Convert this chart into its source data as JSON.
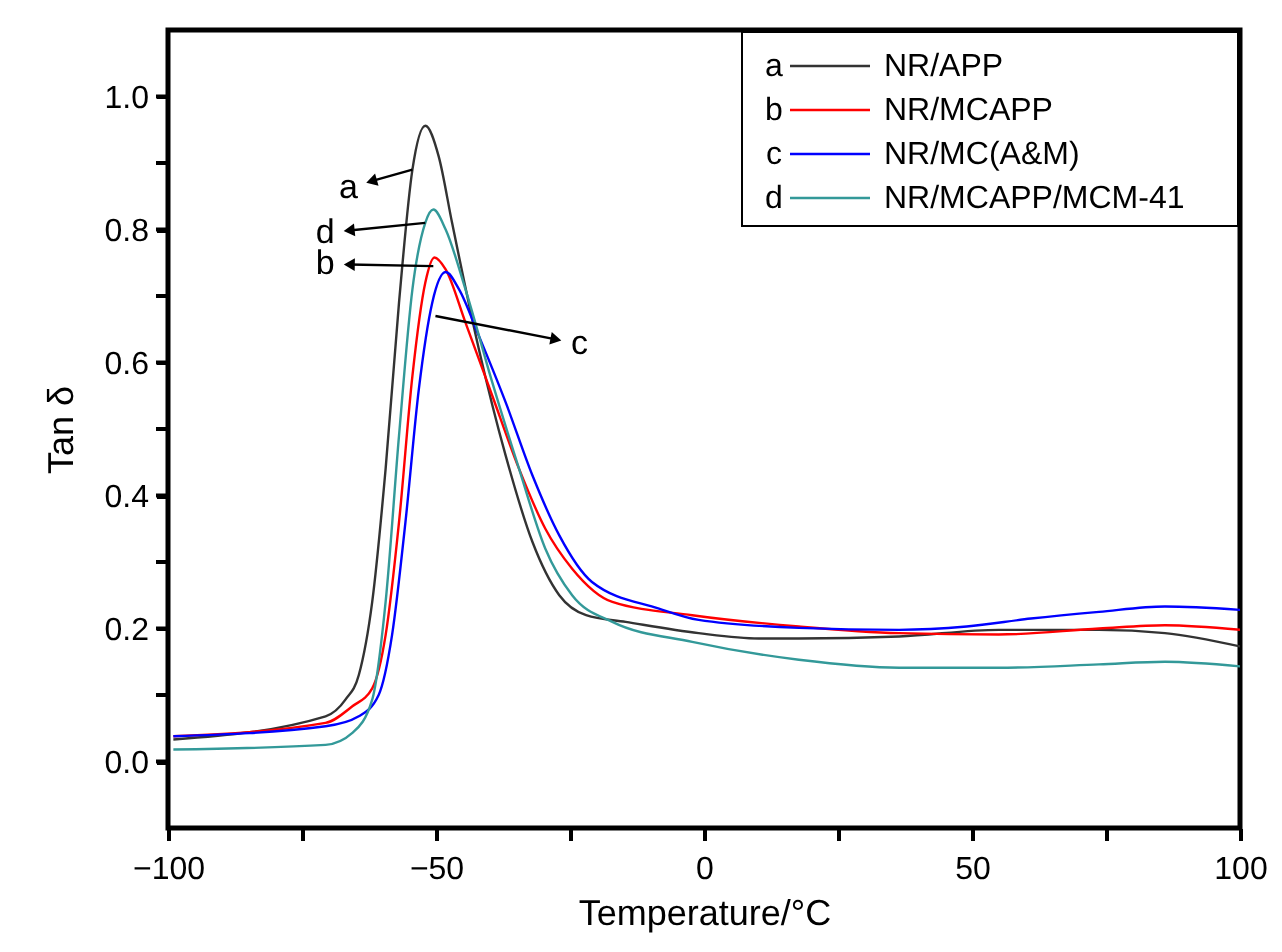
{
  "chart_data": {
    "type": "line",
    "xlabel": "Temperature/°C",
    "ylabel": "Tan δ",
    "xlim": [
      -100,
      100
    ],
    "ylim": [
      -0.1,
      1.1
    ],
    "xticks": [
      {
        "value": -100,
        "label": "−100"
      },
      {
        "value": -75,
        "label": null
      },
      {
        "value": -50,
        "label": "−50"
      },
      {
        "value": -25,
        "label": null
      },
      0,
      {
        "value": 25,
        "label": null
      },
      50,
      {
        "value": 75,
        "label": null
      },
      100
    ],
    "yticks": [
      {
        "value": 0,
        "label": "0.0"
      },
      {
        "value": 0.1,
        "label": null
      },
      0.2,
      {
        "value": 0.3,
        "label": null
      },
      0.4,
      {
        "value": 0.5,
        "label": null
      },
      0.6,
      {
        "value": 0.7,
        "label": null
      },
      0.8,
      {
        "value": 0.9,
        "label": null
      },
      {
        "value": 1.0,
        "label": "1.0"
      }
    ],
    "grid": false,
    "legend": "top right",
    "line_style": "solid",
    "marker": "none",
    "annotations": [
      {
        "text": "a",
        "x": -54.4,
        "y": 0.89
      },
      {
        "text": "b",
        "x": -50.5,
        "y": 0.745
      },
      {
        "text": "c",
        "x": -50.1,
        "y": 0.67
      },
      {
        "text": "d",
        "x": -52,
        "y": 0.81
      }
    ],
    "series": [
      {
        "name": "NR/APP",
        "color": "#333333",
        "x": [
          -99,
          -70.6,
          -66.9,
          -64.4,
          -61.9,
          -59.4,
          -56.9,
          -54.4,
          -52,
          -49.5,
          -47,
          -42,
          -37,
          -32,
          -27,
          -22,
          -14.6,
          -1,
          10.2,
          17.7,
          36.4,
          55,
          73.7,
          86,
          100
        ],
        "values": [
          0.033,
          0.068,
          0.093,
          0.13,
          0.24,
          0.44,
          0.69,
          0.89,
          0.956,
          0.91,
          0.81,
          0.62,
          0.46,
          0.33,
          0.25,
          0.22,
          0.21,
          0.193,
          0.185,
          0.185,
          0.188,
          0.198,
          0.198,
          0.193,
          0.173
        ]
      },
      {
        "name": "NR/MCAPP",
        "color": "#ff0000",
        "x": [
          -99,
          -70.6,
          -65.6,
          -61.9,
          -59.4,
          -56.9,
          -54.4,
          -52,
          -50.3,
          -48.2,
          -44.5,
          -39.5,
          -34.5,
          -29.6,
          -24.6,
          -17.1,
          -2.2,
          17.7,
          36.4,
          55,
          73.7,
          86,
          100
        ],
        "values": [
          0.038,
          0.058,
          0.083,
          0.11,
          0.19,
          0.36,
          0.58,
          0.72,
          0.758,
          0.74,
          0.66,
          0.55,
          0.44,
          0.35,
          0.29,
          0.24,
          0.22,
          0.203,
          0.193,
          0.191,
          0.2,
          0.205,
          0.198
        ]
      },
      {
        "name": "NR/MC(A&M)",
        "color": "#0000ff",
        "x": [
          -99,
          -70.6,
          -64.4,
          -60.7,
          -58.2,
          -55.7,
          -53.2,
          -50.7,
          -48.2,
          -45.7,
          -42,
          -37,
          -32,
          -27,
          -20.9,
          -8.4,
          -1,
          17.7,
          36.4,
          49,
          61,
          73.7,
          86,
          100
        ],
        "values": [
          0.038,
          0.053,
          0.068,
          0.1,
          0.19,
          0.36,
          0.56,
          0.69,
          0.736,
          0.71,
          0.64,
          0.54,
          0.43,
          0.34,
          0.27,
          0.23,
          0.213,
          0.201,
          0.198,
          0.203,
          0.215,
          0.225,
          0.233,
          0.228
        ]
      },
      {
        "name": "NR/MCAPP/MCM-41",
        "color": "#339999",
        "x": [
          -99,
          -70.6,
          -65.6,
          -61.9,
          -59.4,
          -56.9,
          -54.4,
          -52,
          -50.5,
          -48.2,
          -44.5,
          -39.5,
          -34.5,
          -29.6,
          -24.6,
          -17.1,
          -2.2,
          17.7,
          36.4,
          55,
          73.7,
          86,
          100
        ],
        "values": [
          0.018,
          0.025,
          0.043,
          0.093,
          0.24,
          0.49,
          0.71,
          0.81,
          0.83,
          0.8,
          0.71,
          0.57,
          0.44,
          0.32,
          0.25,
          0.21,
          0.18,
          0.153,
          0.141,
          0.141,
          0.146,
          0.15,
          0.143
        ]
      }
    ]
  }
}
